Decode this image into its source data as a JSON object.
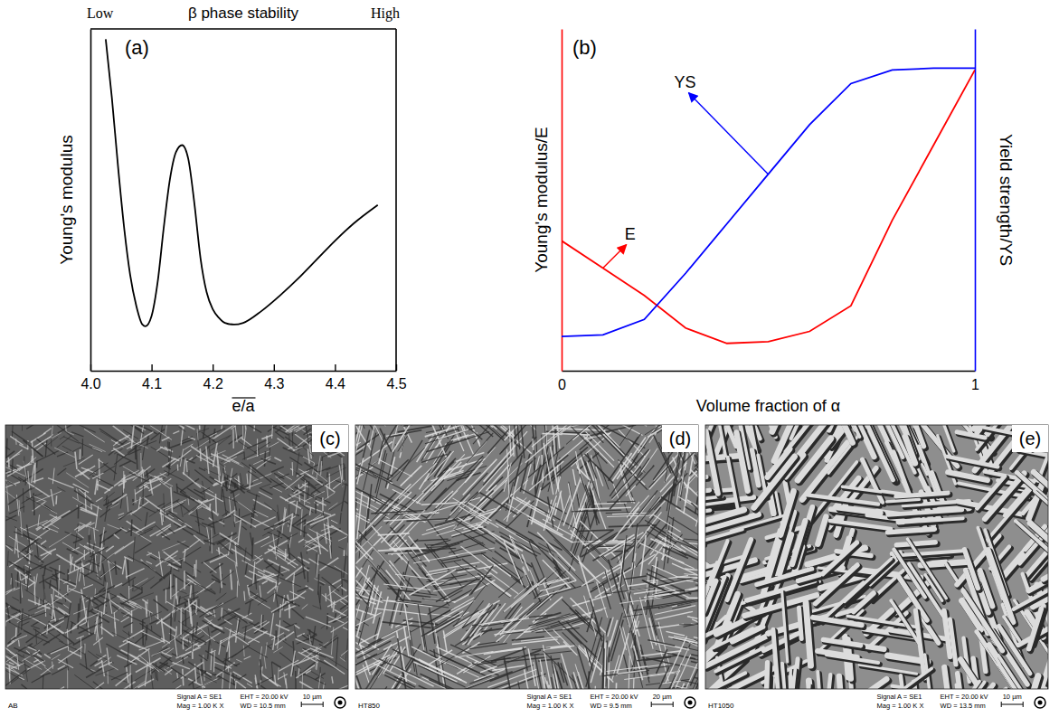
{
  "chart_data": [
    {
      "type": "line",
      "panel": "(a)",
      "title": "β phase stability",
      "annotations": [
        "Low",
        "High"
      ],
      "x_label": "e/a",
      "y_label": "Young's modulus",
      "x": [
        4.025,
        4.035,
        4.045,
        4.055,
        4.065,
        4.075,
        4.085,
        4.09,
        4.1,
        4.11,
        4.12,
        4.13,
        4.14,
        4.15,
        4.16,
        4.17,
        4.18,
        4.19,
        4.2,
        4.21,
        4.22,
        4.235,
        4.25,
        4.28,
        4.31,
        4.34,
        4.37,
        4.4,
        4.43,
        4.47
      ],
      "values": [
        9.7,
        8.0,
        6.0,
        4.2,
        2.8,
        1.9,
        1.35,
        1.3,
        1.6,
        2.6,
        4.2,
        5.6,
        6.4,
        6.6,
        6.2,
        4.9,
        3.3,
        2.3,
        1.8,
        1.55,
        1.4,
        1.35,
        1.4,
        1.75,
        2.2,
        2.7,
        3.25,
        3.8,
        4.3,
        4.85
      ],
      "color": "#000000",
      "xlim": [
        4.0,
        4.5
      ],
      "xticks": [
        {
          "value": 4.0,
          "label": "4.0"
        },
        4.1,
        4.2,
        4.3,
        4.4,
        4.5
      ],
      "ylim": [
        0,
        10
      ],
      "yticks": [],
      "tick_labels": "x"
    },
    {
      "type": "line",
      "panel": "(b)",
      "x_label": "Volume fraction of α",
      "y_label": "Young's modulus/E",
      "y2_label": "Yield strength/YS",
      "x": [
        0,
        0.1,
        0.2,
        0.3,
        0.4,
        0.5,
        0.6,
        0.7,
        0.8,
        0.9,
        1
      ],
      "series": [
        {
          "name": "E",
          "color": "#ff0000",
          "values": [
            3.8,
            3.0,
            2.2,
            1.25,
            0.8,
            0.85,
            1.15,
            1.9,
            4.4,
            6.6,
            8.8
          ]
        },
        {
          "name": "YS",
          "color": "#0000ff",
          "axis": "y2",
          "values": [
            1.0,
            1.05,
            1.5,
            2.85,
            4.3,
            5.75,
            7.2,
            8.4,
            8.8,
            8.85,
            8.85
          ]
        }
      ],
      "xlim": [
        0,
        1
      ],
      "xticks": [
        0,
        1
      ],
      "ylim": [
        0,
        10
      ],
      "yticks": [],
      "y2lim": [
        0,
        10
      ],
      "y2ticks": [],
      "tick_labels": "x"
    }
  ],
  "micrographs": [
    {
      "panel": "(c)",
      "sample": "AB",
      "signal": "Signal A = SE1",
      "eht": "EHT = 20.00 kV",
      "mag": "Mag = 1.00 K X",
      "wd": "WD = 10.5 mm",
      "scale_bar": "10 µm"
    },
    {
      "panel": "(d)",
      "sample": "HT850",
      "signal": "Signal A = SE1",
      "eht": "EHT = 20.00 kV",
      "mag": "Mag = 1.00 K X",
      "wd": "WD = 9.5 mm",
      "scale_bar": "20 µm"
    },
    {
      "panel": "(e)",
      "sample": "HT1050",
      "signal": "Signal A = SE1",
      "eht": "EHT = 20.00 kV",
      "mag": "Mag = 1.00 K X",
      "wd": "WD = 13.5 mm",
      "scale_bar": "10 µm"
    }
  ]
}
